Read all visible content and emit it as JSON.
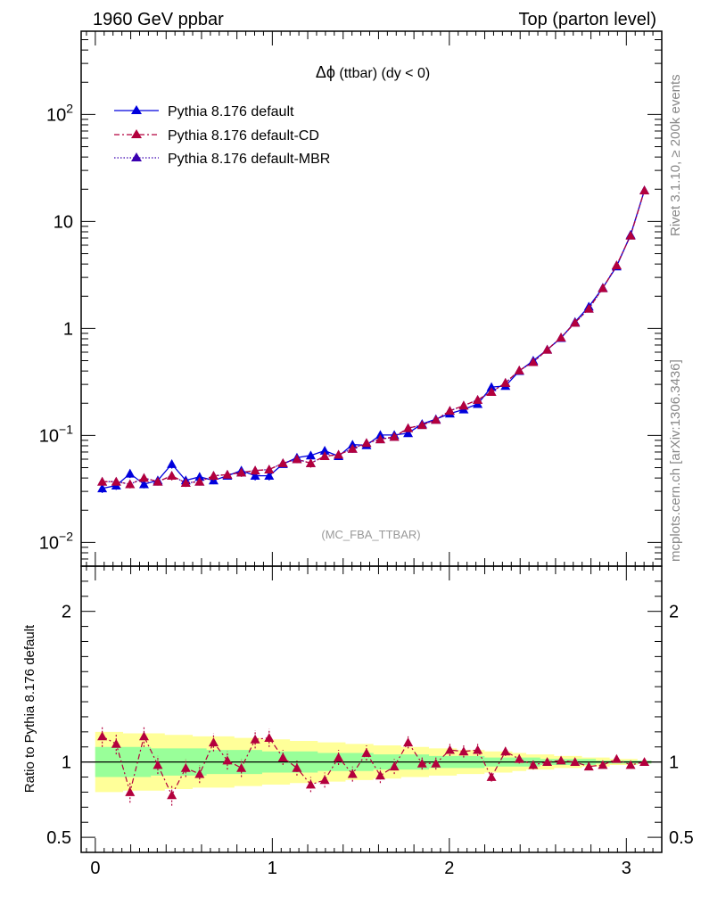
{
  "header": {
    "left": "1960 GeV ppbar",
    "right": "Top (parton level)"
  },
  "side": {
    "rivet": "Rivet 3.1.10, ≥ 200k events",
    "mcplots": "mcplots.cern.ch [arXiv:1306.3436]"
  },
  "watermark": "(MC_FBA_TTBAR)",
  "plot_title": {
    "symbol": "Δϕ",
    "text": " (ttbar) (dy < 0)"
  },
  "ratio_ylabel": "Ratio to Pythia 8.176 default",
  "colors": {
    "default": "#0000dd",
    "cd": "#b3003d",
    "mbr": "#3a00b0",
    "band_outer": "#ffff99",
    "band_inner": "#99ff99"
  },
  "chart_data": {
    "type": "line",
    "log_y": true,
    "xlim": [
      -0.08,
      3.2
    ],
    "ylim": [
      0.006,
      600
    ],
    "x_ticks": [
      "0",
      "1",
      "2",
      "3"
    ],
    "y_ticks": [
      "10^-2",
      "10^-1",
      "1",
      "10",
      "10^2"
    ],
    "x": [
      0.039,
      0.118,
      0.196,
      0.275,
      0.353,
      0.432,
      0.511,
      0.589,
      0.668,
      0.746,
      0.825,
      0.903,
      0.982,
      1.06,
      1.139,
      1.217,
      1.296,
      1.374,
      1.453,
      1.532,
      1.61,
      1.689,
      1.767,
      1.846,
      1.924,
      2.003,
      2.081,
      2.16,
      2.238,
      2.317,
      2.395,
      2.474,
      2.553,
      2.631,
      2.71,
      2.788,
      2.867,
      2.945,
      3.024,
      3.102
    ],
    "series": [
      {
        "name": "Pythia 8.176 default",
        "style": "solid",
        "values": [
          0.032,
          0.034,
          0.044,
          0.035,
          0.038,
          0.054,
          0.038,
          0.041,
          0.038,
          0.042,
          0.047,
          0.042,
          0.042,
          0.054,
          0.062,
          0.065,
          0.072,
          0.064,
          0.082,
          0.081,
          0.101,
          0.101,
          0.105,
          0.128,
          0.142,
          0.16,
          0.175,
          0.197,
          0.283,
          0.29,
          0.4,
          0.5,
          0.634,
          0.815,
          1.15,
          1.6,
          2.4,
          3.8,
          7.5,
          19.5
        ],
        "errors": [
          0.003,
          0.003,
          0.004,
          0.003,
          0.003,
          0.005,
          0.003,
          0.004,
          0.003,
          0.003,
          0.004,
          0.004,
          0.004,
          0.004,
          0.005,
          0.005,
          0.006,
          0.005,
          0.006,
          0.006,
          0.007,
          0.007,
          0.007,
          0.008,
          0.009,
          0.01,
          0.01,
          0.012,
          0.016,
          0.016,
          0.02,
          0.025,
          0.03,
          0.035,
          0.045,
          0.06,
          0.08,
          0.11,
          0.18,
          0.3
        ]
      },
      {
        "name": "Pythia 8.176 default-CD",
        "style": "dashdot",
        "values": [
          0.037,
          0.037,
          0.035,
          0.04,
          0.037,
          0.042,
          0.036,
          0.037,
          0.042,
          0.043,
          0.045,
          0.047,
          0.048,
          0.055,
          0.06,
          0.055,
          0.064,
          0.066,
          0.075,
          0.085,
          0.092,
          0.097,
          0.117,
          0.125,
          0.14,
          0.17,
          0.19,
          0.215,
          0.255,
          0.31,
          0.405,
          0.485,
          0.633,
          0.822,
          1.13,
          1.53,
          2.38,
          3.89,
          7.38,
          19.5
        ],
        "errors": [
          0.003,
          0.003,
          0.003,
          0.003,
          0.003,
          0.004,
          0.003,
          0.003,
          0.004,
          0.003,
          0.004,
          0.004,
          0.004,
          0.004,
          0.005,
          0.005,
          0.005,
          0.005,
          0.006,
          0.006,
          0.007,
          0.007,
          0.008,
          0.008,
          0.009,
          0.01,
          0.011,
          0.012,
          0.015,
          0.017,
          0.02,
          0.024,
          0.03,
          0.035,
          0.045,
          0.058,
          0.08,
          0.11,
          0.18,
          0.3
        ]
      },
      {
        "name": "Pythia 8.176 default-MBR",
        "style": "dotted",
        "values": [
          0.037,
          0.037,
          0.035,
          0.04,
          0.037,
          0.042,
          0.036,
          0.037,
          0.042,
          0.043,
          0.045,
          0.047,
          0.048,
          0.055,
          0.06,
          0.055,
          0.064,
          0.066,
          0.075,
          0.085,
          0.092,
          0.097,
          0.117,
          0.125,
          0.14,
          0.17,
          0.19,
          0.215,
          0.255,
          0.31,
          0.405,
          0.485,
          0.633,
          0.822,
          1.13,
          1.53,
          2.38,
          3.89,
          7.38,
          19.5
        ]
      }
    ],
    "ratio": {
      "ylabel": "Ratio to Pythia 8.176 default",
      "ylim": [
        0.4,
        2.3
      ],
      "y_ticks": [
        "0.5",
        "1",
        "2"
      ],
      "values": [
        1.17,
        1.12,
        0.8,
        1.17,
        0.98,
        0.78,
        0.96,
        0.92,
        1.13,
        1.01,
        0.96,
        1.15,
        1.16,
        1.03,
        0.96,
        0.85,
        0.88,
        1.03,
        0.92,
        1.06,
        0.91,
        0.97,
        1.13,
        0.99,
        0.99,
        1.08,
        1.07,
        1.08,
        0.9,
        1.07,
        1.02,
        0.98,
        1.0,
        1.01,
        1.0,
        0.97,
        0.98,
        1.02,
        0.98,
        1.0
      ],
      "errors": [
        0.07,
        0.07,
        0.07,
        0.07,
        0.06,
        0.07,
        0.06,
        0.06,
        0.06,
        0.06,
        0.06,
        0.06,
        0.06,
        0.05,
        0.05,
        0.05,
        0.05,
        0.05,
        0.05,
        0.05,
        0.05,
        0.05,
        0.04,
        0.04,
        0.04,
        0.04,
        0.04,
        0.04,
        0.03,
        0.03,
        0.03,
        0.03,
        0.02,
        0.02,
        0.02,
        0.02,
        0.02,
        0.02,
        0.01,
        0.01
      ],
      "band_outer_halfwidth": [
        0.2,
        0.2,
        0.19,
        0.19,
        0.19,
        0.18,
        0.18,
        0.17,
        0.17,
        0.17,
        0.16,
        0.16,
        0.15,
        0.15,
        0.14,
        0.14,
        0.13,
        0.13,
        0.12,
        0.12,
        0.11,
        0.11,
        0.1,
        0.1,
        0.09,
        0.09,
        0.08,
        0.08,
        0.07,
        0.07,
        0.06,
        0.05,
        0.05,
        0.04,
        0.04,
        0.03,
        0.03,
        0.02,
        0.02,
        0.01
      ],
      "band_inner_halfwidth": [
        0.1,
        0.1,
        0.1,
        0.1,
        0.09,
        0.09,
        0.09,
        0.09,
        0.08,
        0.08,
        0.08,
        0.08,
        0.07,
        0.07,
        0.07,
        0.07,
        0.06,
        0.06,
        0.06,
        0.06,
        0.05,
        0.05,
        0.05,
        0.05,
        0.04,
        0.04,
        0.04,
        0.04,
        0.03,
        0.03,
        0.03,
        0.03,
        0.02,
        0.02,
        0.02,
        0.02,
        0.01,
        0.01,
        0.01,
        0.01
      ]
    }
  }
}
